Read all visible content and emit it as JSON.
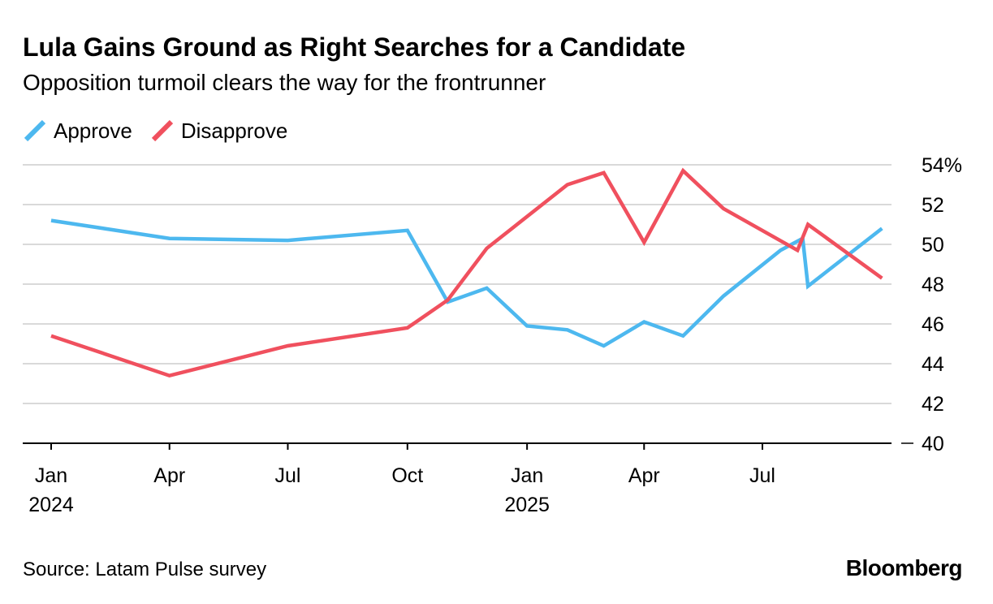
{
  "title": "Lula Gains Ground as Right Searches for a Candidate",
  "subtitle": "Opposition turmoil clears the way for the frontrunner",
  "source": "Source: Latam Pulse survey",
  "brand": "Bloomberg",
  "chart_data": {
    "type": "line",
    "title": "Lula Gains Ground as Right Searches for a Candidate",
    "subtitle": "Opposition turmoil clears the way for the frontrunner",
    "xlabel": "",
    "ylabel": "",
    "ylim": [
      40,
      54
    ],
    "y_ticks": [
      40,
      42,
      44,
      46,
      48,
      50,
      52,
      54
    ],
    "y_tick_labels": [
      "40",
      "42",
      "44",
      "46",
      "48",
      "50",
      "52",
      "54%"
    ],
    "x_range": [
      "2024-01-01",
      "2025-10-15"
    ],
    "x_ticks": [
      {
        "date": "2024-01-01",
        "label": "Jan",
        "sublabel": "2024"
      },
      {
        "date": "2024-04-01",
        "label": "Apr",
        "sublabel": ""
      },
      {
        "date": "2024-07-01",
        "label": "Jul",
        "sublabel": ""
      },
      {
        "date": "2024-10-01",
        "label": "Oct",
        "sublabel": ""
      },
      {
        "date": "2025-01-01",
        "label": "Jan",
        "sublabel": "2025"
      },
      {
        "date": "2025-04-01",
        "label": "Apr",
        "sublabel": ""
      },
      {
        "date": "2025-07-01",
        "label": "Jul",
        "sublabel": ""
      }
    ],
    "grid": true,
    "legend_position": "top-left",
    "series": [
      {
        "name": "Approve",
        "color": "#4db8ef",
        "points": [
          {
            "x": "2024-01-01",
            "y": 51.2
          },
          {
            "x": "2024-04-01",
            "y": 50.3
          },
          {
            "x": "2024-07-01",
            "y": 50.2
          },
          {
            "x": "2024-10-01",
            "y": 50.7
          },
          {
            "x": "2024-11-01",
            "y": 47.1
          },
          {
            "x": "2024-12-01",
            "y": 47.8
          },
          {
            "x": "2025-01-01",
            "y": 45.9
          },
          {
            "x": "2025-02-01",
            "y": 45.7
          },
          {
            "x": "2025-03-01",
            "y": 44.9
          },
          {
            "x": "2025-04-01",
            "y": 46.1
          },
          {
            "x": "2025-05-01",
            "y": 45.4
          },
          {
            "x": "2025-06-01",
            "y": 47.4
          },
          {
            "x": "2025-07-15",
            "y": 49.7
          },
          {
            "x": "2025-08-01",
            "y": 50.3
          },
          {
            "x": "2025-08-05",
            "y": 47.9
          },
          {
            "x": "2025-10-01",
            "y": 50.8
          }
        ]
      },
      {
        "name": "Disapprove",
        "color": "#f0505e",
        "points": [
          {
            "x": "2024-01-01",
            "y": 45.4
          },
          {
            "x": "2024-04-01",
            "y": 43.4
          },
          {
            "x": "2024-07-01",
            "y": 44.9
          },
          {
            "x": "2024-10-01",
            "y": 45.8
          },
          {
            "x": "2024-11-01",
            "y": 47.2
          },
          {
            "x": "2024-12-01",
            "y": 49.8
          },
          {
            "x": "2025-02-01",
            "y": 53.0
          },
          {
            "x": "2025-03-01",
            "y": 53.6
          },
          {
            "x": "2025-04-01",
            "y": 50.1
          },
          {
            "x": "2025-05-01",
            "y": 53.7
          },
          {
            "x": "2025-06-01",
            "y": 51.8
          },
          {
            "x": "2025-07-28",
            "y": 49.7
          },
          {
            "x": "2025-08-05",
            "y": 51.0
          },
          {
            "x": "2025-10-01",
            "y": 48.3
          }
        ]
      }
    ]
  }
}
